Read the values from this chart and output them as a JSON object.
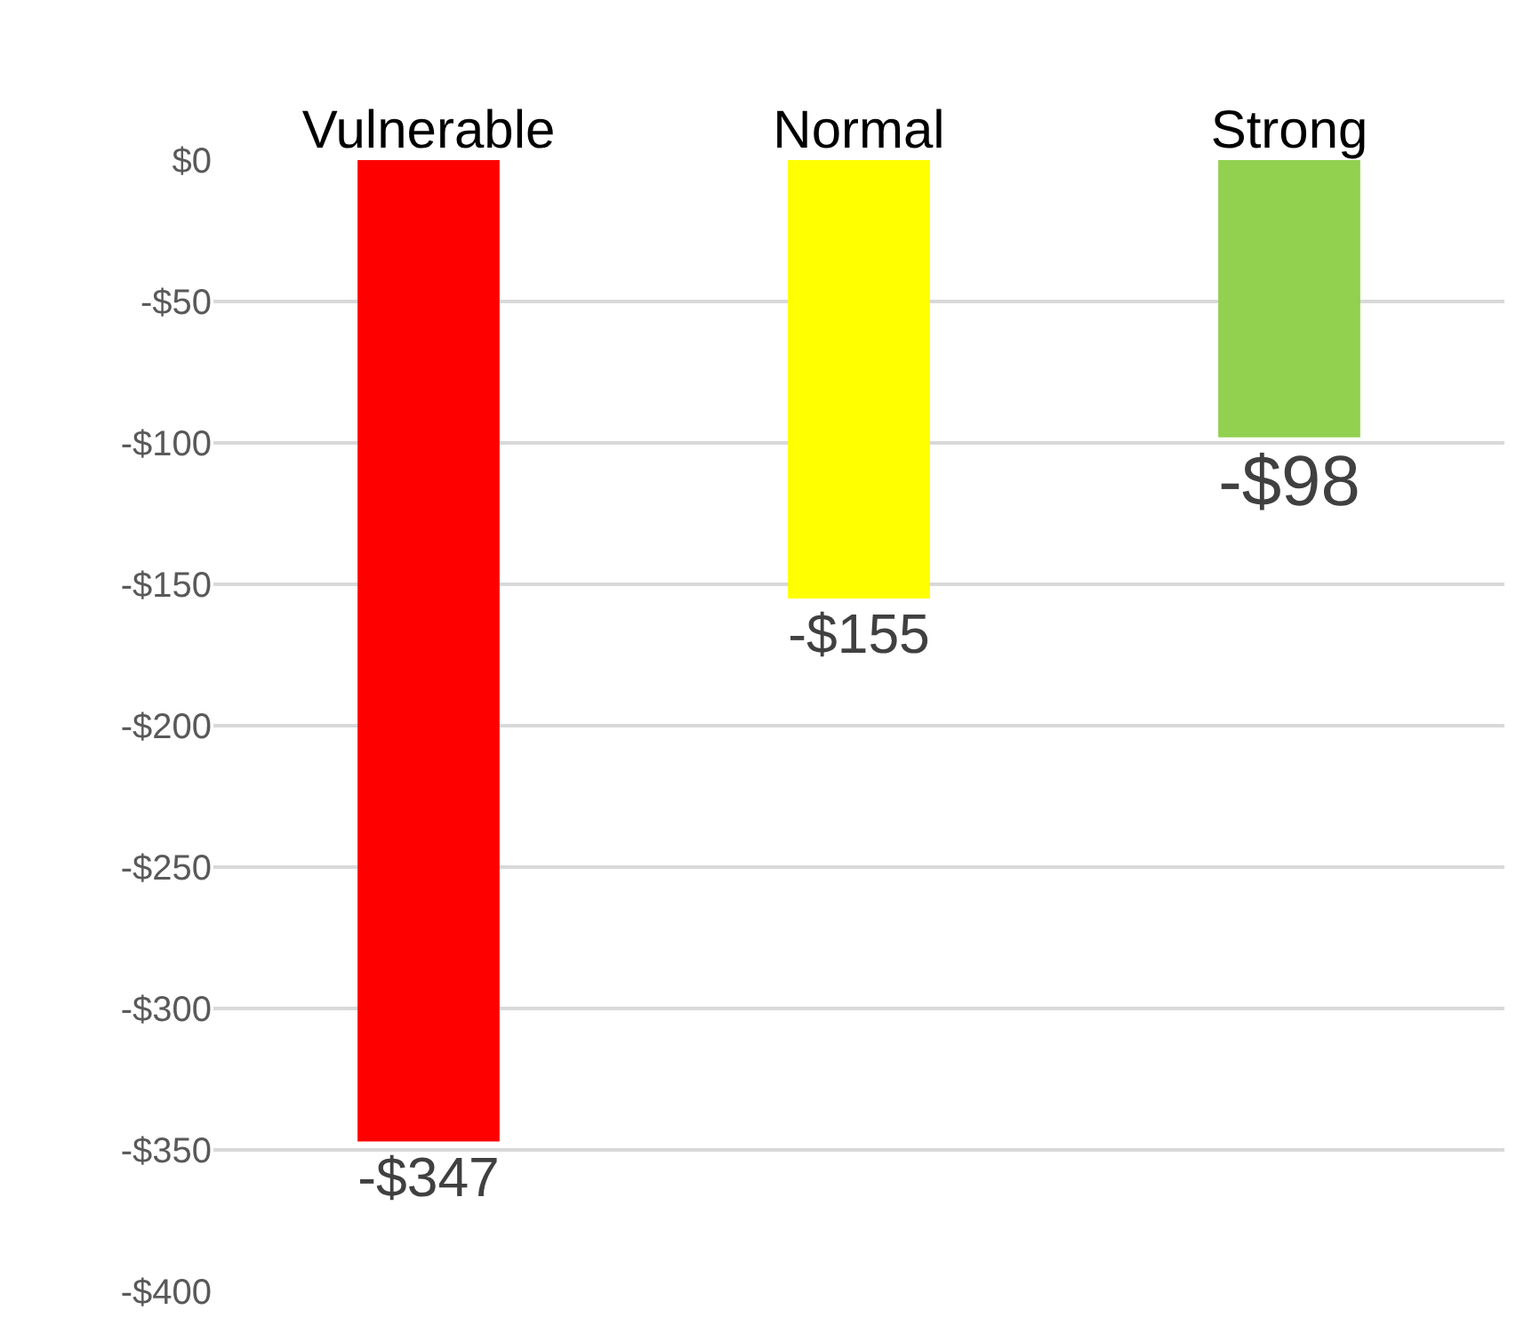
{
  "chart_data": {
    "type": "bar",
    "categories": [
      "Vulnerable",
      "Normal",
      "Strong"
    ],
    "values": [
      -347,
      -155,
      -98
    ],
    "colors": [
      "#ff0000",
      "#ffff00",
      "#92d050"
    ],
    "value_labels": [
      "-$347",
      "-$155",
      "-$98"
    ],
    "ylim": [
      -400,
      0
    ],
    "yticks": [
      {
        "value": 0,
        "label": "$0"
      },
      {
        "value": -50,
        "label": "-$50"
      },
      {
        "value": -100,
        "label": "-$100"
      },
      {
        "value": -150,
        "label": "-$150"
      },
      {
        "value": -200,
        "label": "-$200"
      },
      {
        "value": -250,
        "label": "-$250"
      },
      {
        "value": -300,
        "label": "-$300"
      },
      {
        "value": -350,
        "label": "-$350"
      },
      {
        "value": -400,
        "label": "-$400"
      }
    ],
    "grid": "y"
  }
}
